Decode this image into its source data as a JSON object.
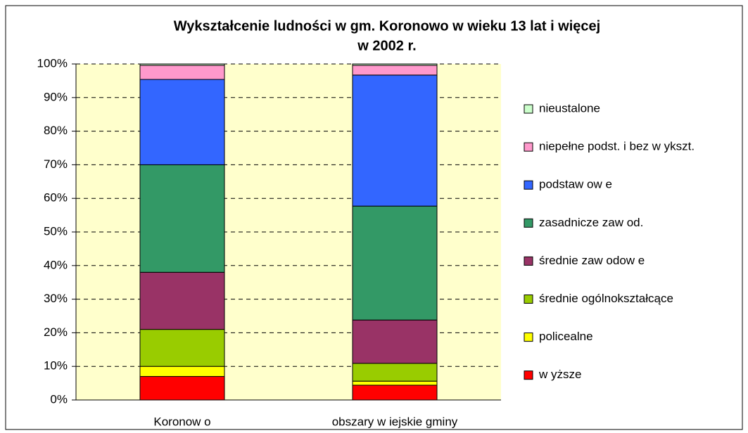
{
  "chart_data": {
    "type": "stacked_bar",
    "title": [
      "Wykształcenie ludności w gm. Koronowo w wieku 13 lat i więcej",
      "w 2002 r."
    ],
    "categories": [
      "Koronow o",
      "obszary w iejskie gminy"
    ],
    "series": [
      {
        "name": "w yższe",
        "color": "#ff0000",
        "values": [
          7,
          4.4
        ]
      },
      {
        "name": "policealne",
        "color": "#ffff00",
        "values": [
          3,
          1.2
        ]
      },
      {
        "name": "średnie ogólnokształcące",
        "color": "#99cc00",
        "values": [
          11,
          5.3
        ]
      },
      {
        "name": "średnie zaw odow e",
        "color": "#993366",
        "values": [
          17,
          12.9
        ]
      },
      {
        "name": "zasadnicze zaw od.",
        "color": "#339966",
        "values": [
          32,
          33.9
        ]
      },
      {
        "name": "podstaw ow e",
        "color": "#3366ff",
        "values": [
          25.4,
          39
        ]
      },
      {
        "name": "niepełne podst. i bez w ykszt.",
        "color": "#ff99cc",
        "values": [
          4.2,
          2.9
        ]
      },
      {
        "name": "nieustalone",
        "color": "#ccffcc",
        "values": [
          0.4,
          0.4
        ]
      }
    ],
    "ylim": [
      0,
      100
    ],
    "yticks": [
      {
        "value": 0,
        "label": "0%"
      },
      {
        "value": 10,
        "label": "10%"
      },
      {
        "value": 20,
        "label": "20%"
      },
      {
        "value": 30,
        "label": "30%"
      },
      {
        "value": 40,
        "label": "40%"
      },
      {
        "value": 50,
        "label": "50%"
      },
      {
        "value": 60,
        "label": "60%"
      },
      {
        "value": 70,
        "label": "70%"
      },
      {
        "value": 80,
        "label": "80%"
      },
      {
        "value": 90,
        "label": "90%"
      },
      {
        "value": 100,
        "label": "100%"
      }
    ],
    "grid": true,
    "plot_background": "#ffffcc",
    "legend": "right"
  }
}
